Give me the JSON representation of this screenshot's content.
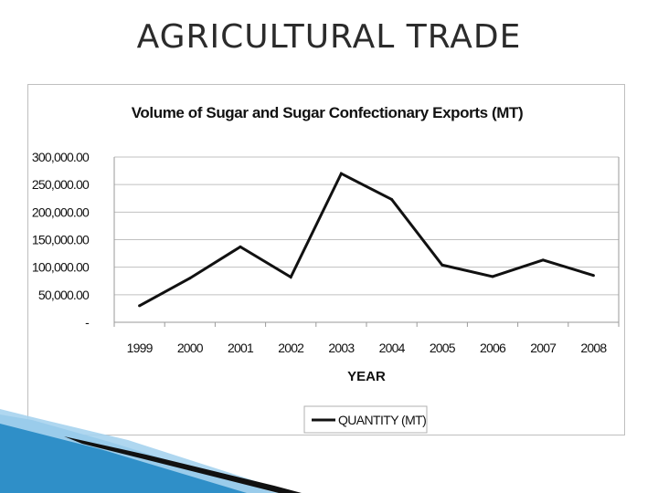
{
  "slide": {
    "title": "AGRICULTURAL TRADE"
  },
  "colors": {
    "line": "#111111",
    "grid": "#c0c0c0",
    "deco_blue": "#2f8fc8",
    "deco_light": "#a6d3ee",
    "deco_dark": "#111111"
  },
  "chart_data": {
    "type": "line",
    "title": "Volume of Sugar and Sugar Confectionary Exports (MT)",
    "xlabel": "YEAR",
    "ylabel": "",
    "categories": [
      "1999",
      "2000",
      "2001",
      "2002",
      "2003",
      "2004",
      "2005",
      "2006",
      "2007",
      "2008"
    ],
    "series": [
      {
        "name": "QUANTITY (MT)",
        "values": [
          30000,
          80000,
          137000,
          82000,
          270000,
          223000,
          104000,
          83000,
          113000,
          85000
        ]
      }
    ],
    "ylim": [
      0,
      300000
    ],
    "yticks": [
      0,
      50000,
      100000,
      150000,
      200000,
      250000,
      300000
    ],
    "ytick_labels": [
      "-",
      "50,000.00",
      "100,000.00",
      "150,000.00",
      "200,000.00",
      "250,000.00",
      "300,000.00"
    ],
    "grid": true,
    "legend_position": "bottom"
  }
}
